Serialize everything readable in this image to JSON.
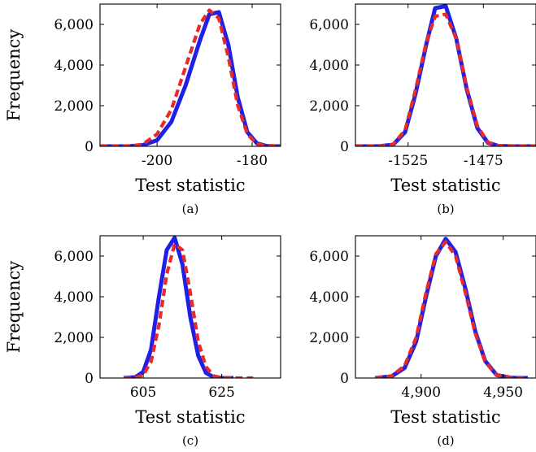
{
  "figure": {
    "colors": {
      "blue": "#1f1fe6",
      "red": "#e82a2a"
    }
  },
  "chart_data": [
    {
      "type": "line",
      "caption": "(a)",
      "xlabel": "Test statistic",
      "ylabel": "Frequency",
      "xlim": [
        -212,
        -174
      ],
      "ylim": [
        0,
        7000
      ],
      "xticks": [
        -200,
        -180
      ],
      "xtick_labels": [
        "-200",
        "-180"
      ],
      "yticks": [
        0,
        2000,
        4000,
        6000
      ],
      "ytick_labels": [
        "0",
        "2,000",
        "4,000",
        "6,000"
      ],
      "grid": false,
      "series": [
        {
          "color": "#1f1fe6",
          "style": "solid",
          "x": [
            -212,
            -206,
            -203,
            -200,
            -197,
            -194,
            -191,
            -189,
            -187,
            -185,
            -183,
            -181,
            -179,
            -177,
            -175,
            -174
          ],
          "y": [
            0,
            0,
            60,
            300,
            1200,
            3000,
            5200,
            6500,
            6600,
            5000,
            2400,
            700,
            150,
            20,
            0,
            0
          ]
        },
        {
          "color": "#e82a2a",
          "style": "dashed",
          "x": [
            -212,
            -206,
            -203,
            -200,
            -197,
            -194,
            -191,
            -189,
            -187,
            -185,
            -183,
            -181,
            -179,
            -177,
            -175,
            -174
          ],
          "y": [
            0,
            0,
            100,
            600,
            1800,
            3900,
            6000,
            6700,
            6300,
            4400,
            2000,
            600,
            120,
            20,
            0,
            0
          ]
        }
      ]
    },
    {
      "type": "line",
      "caption": "(b)",
      "xlabel": "Test statistic",
      "ylabel": "",
      "xlim": [
        -1560,
        -1440
      ],
      "ylim": [
        0,
        7000
      ],
      "xticks": [
        -1525,
        -1475
      ],
      "xtick_labels": [
        "-1525",
        "-1475"
      ],
      "yticks": [
        0,
        2000,
        4000,
        6000
      ],
      "ytick_labels": [
        "0",
        "2,000",
        "4,000",
        "6,000"
      ],
      "grid": false,
      "series": [
        {
          "color": "#1f1fe6",
          "style": "solid",
          "x": [
            -1560,
            -1545,
            -1535,
            -1527,
            -1520,
            -1513,
            -1507,
            -1500,
            -1493,
            -1486,
            -1479,
            -1472,
            -1465,
            -1455,
            -1440
          ],
          "y": [
            0,
            0,
            80,
            700,
            2600,
            5000,
            6800,
            6900,
            5300,
            2800,
            900,
            180,
            20,
            0,
            0
          ]
        },
        {
          "color": "#e82a2a",
          "style": "dashed",
          "x": [
            -1560,
            -1545,
            -1535,
            -1527,
            -1520,
            -1513,
            -1507,
            -1500,
            -1493,
            -1486,
            -1479,
            -1472,
            -1465,
            -1455,
            -1440
          ],
          "y": [
            0,
            0,
            90,
            800,
            2800,
            5100,
            6400,
            6500,
            5300,
            2900,
            1000,
            200,
            25,
            0,
            0
          ]
        }
      ]
    },
    {
      "type": "line",
      "caption": "(c)",
      "xlabel": "Test statistic",
      "ylabel": "Frequency",
      "xlim": [
        594,
        640
      ],
      "ylim": [
        0,
        7000
      ],
      "xticks": [
        605,
        625
      ],
      "xtick_labels": [
        "605",
        "625"
      ],
      "yticks": [
        0,
        2000,
        4000,
        6000
      ],
      "ytick_labels": [
        "0",
        "2,000",
        "4,000",
        "6,000"
      ],
      "grid": false,
      "series": [
        {
          "color": "#1f1fe6",
          "style": "solid",
          "x": [
            600,
            603,
            605,
            607,
            609,
            611,
            613,
            615,
            617,
            619,
            621,
            623,
            625,
            628
          ],
          "y": [
            0,
            40,
            300,
            1400,
            4000,
            6300,
            6900,
            5600,
            3000,
            1100,
            250,
            40,
            0,
            0
          ]
        },
        {
          "color": "#e82a2a",
          "style": "dashed",
          "x": [
            600,
            603,
            605,
            607,
            609,
            611,
            613,
            615,
            617,
            619,
            621,
            623,
            625,
            628,
            633
          ],
          "y": [
            0,
            20,
            150,
            800,
            2600,
            5100,
            6600,
            6300,
            4200,
            1800,
            550,
            100,
            20,
            0,
            0
          ]
        }
      ]
    },
    {
      "type": "line",
      "caption": "(d)",
      "xlabel": "Test statistic",
      "ylabel": "",
      "xlim": [
        4860,
        4970
      ],
      "ylim": [
        0,
        7000
      ],
      "xticks": [
        4900,
        4950
      ],
      "xtick_labels": [
        "4,900",
        "4,950"
      ],
      "yticks": [
        0,
        2000,
        4000,
        6000
      ],
      "ytick_labels": [
        "0",
        "2,000",
        "4,000",
        "6,000"
      ],
      "grid": false,
      "series": [
        {
          "color": "#1f1fe6",
          "style": "solid",
          "x": [
            4872,
            4882,
            4890,
            4897,
            4903,
            4909,
            4915,
            4921,
            4927,
            4933,
            4939,
            4946,
            4955,
            4965
          ],
          "y": [
            0,
            80,
            500,
            1800,
            4000,
            6000,
            6850,
            6200,
            4400,
            2300,
            850,
            150,
            10,
            0
          ]
        },
        {
          "color": "#e82a2a",
          "style": "dashed",
          "x": [
            4872,
            4882,
            4890,
            4897,
            4903,
            4909,
            4915,
            4921,
            4927,
            4933,
            4939,
            4946,
            4955,
            4965
          ],
          "y": [
            0,
            100,
            600,
            2000,
            4200,
            6100,
            6700,
            6000,
            4200,
            2200,
            800,
            150,
            10,
            0
          ]
        }
      ]
    }
  ]
}
